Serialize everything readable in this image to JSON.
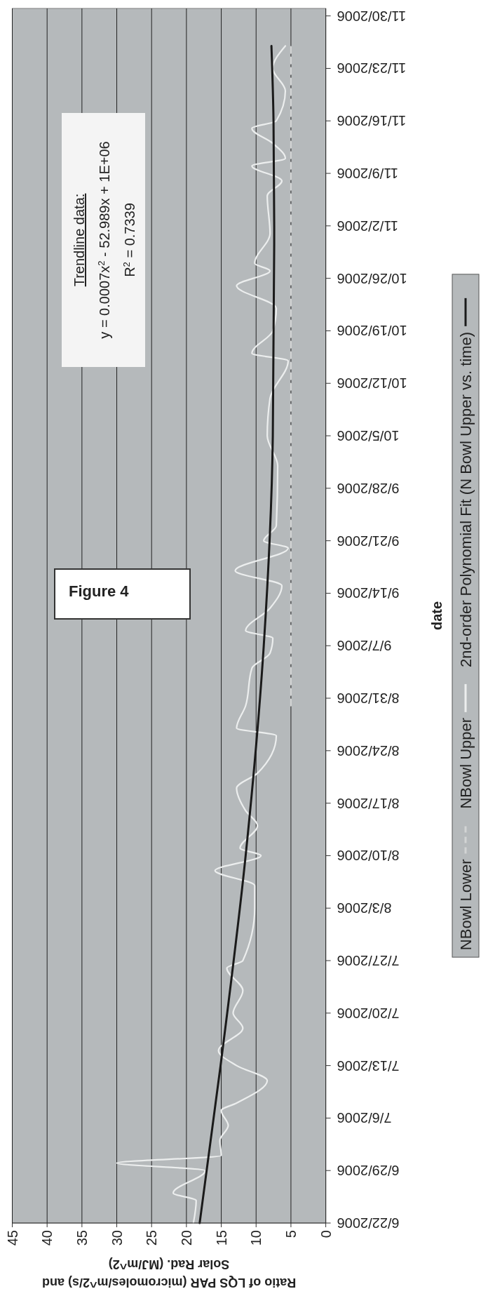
{
  "chart_data": {
    "type": "line",
    "orientation": "horizontal",
    "ylabel": "date",
    "xlabel": "Ratio of LQS PAR (micromoles/m^2/s) and\nSolar Rad. (MJ/m^2)",
    "annotations": [
      "Figure 4",
      "Trendline data:",
      "y = 0.0007x$^{2}$ - 52.989x + 1E+06",
      "R$^{2}$ = 0.7339"
    ],
    "ylim": [
      "2006-06-22",
      "2006-12-01"
    ],
    "yticks": [
      {
        "value": "2006-06-22",
        "label": "6/22/2006"
      },
      {
        "value": "2006-06-29",
        "label": "6/29/2006"
      },
      {
        "value": "2006-07-06",
        "label": "7/6/2006"
      },
      {
        "value": "2006-07-13",
        "label": "7/13/2006"
      },
      {
        "value": "2006-07-20",
        "label": "7/20/2006"
      },
      {
        "value": "2006-07-27",
        "label": "7/27/2006"
      },
      {
        "value": "2006-08-03",
        "label": "8/3/2006"
      },
      {
        "value": "2006-08-10",
        "label": "8/10/2006"
      },
      {
        "value": "2006-08-17",
        "label": "8/17/2006"
      },
      {
        "value": "2006-08-24",
        "label": "8/24/2006"
      },
      {
        "value": "2006-08-31",
        "label": "8/31/2006"
      },
      {
        "value": "2006-09-07",
        "label": "9/7/2006"
      },
      {
        "value": "2006-09-14",
        "label": "9/14/2006"
      },
      {
        "value": "2006-09-21",
        "label": "9/21/2006"
      },
      {
        "value": "2006-09-28",
        "label": "9/28/2006"
      },
      {
        "value": "2006-10-05",
        "label": "10/5/2006"
      },
      {
        "value": "2006-10-12",
        "label": "10/12/2006"
      },
      {
        "value": "2006-10-19",
        "label": "10/19/2006"
      },
      {
        "value": "2006-10-26",
        "label": "10/26/2006"
      },
      {
        "value": "2006-11-02",
        "label": "11/2/2006"
      },
      {
        "value": "2006-11-09",
        "label": "11/9/2006"
      },
      {
        "value": "2006-11-16",
        "label": "11/16/2006"
      },
      {
        "value": "2006-11-23",
        "label": "11/23/2006"
      },
      {
        "value": "2006-11-30",
        "label": "11/30/2006"
      }
    ],
    "xlim": [
      45,
      0
    ],
    "xticks": [
      45,
      40,
      35,
      30,
      25,
      20,
      15,
      10,
      5,
      0
    ],
    "grid": "x",
    "legend": "right",
    "series": [
      {
        "name": "NBowl Lower",
        "color": "#d2d4d4",
        "line_style": "dashed",
        "x": [
          "2006-08-30",
          "2006-11-26"
        ],
        "values": [
          5,
          5
        ]
      },
      {
        "name": "NBowl Upper",
        "color": "#eceeee",
        "x": [
          "2006-06-22",
          "2006-06-25",
          "2006-06-26",
          "2006-06-29",
          "2006-06-30",
          "2006-07-01",
          "2006-07-03",
          "2006-07-05",
          "2006-07-07",
          "2006-07-08",
          "2006-07-11",
          "2006-07-13",
          "2006-07-15",
          "2006-07-18",
          "2006-07-20",
          "2006-07-23",
          "2006-07-26",
          "2006-07-27",
          "2006-08-03",
          "2006-08-06",
          "2006-08-08",
          "2006-08-10",
          "2006-08-11",
          "2006-08-14",
          "2006-08-16",
          "2006-08-19",
          "2006-08-21",
          "2006-08-26",
          "2006-08-27",
          "2006-08-30",
          "2006-09-04",
          "2006-09-06",
          "2006-09-08",
          "2006-09-09",
          "2006-09-12",
          "2006-09-15",
          "2006-09-17",
          "2006-09-20",
          "2006-09-21",
          "2006-09-23",
          "2006-10-01",
          "2006-10-05",
          "2006-10-10",
          "2006-10-15",
          "2006-10-16",
          "2006-10-19",
          "2006-10-22",
          "2006-10-25",
          "2006-10-27",
          "2006-10-28",
          "2006-11-01",
          "2006-11-06",
          "2006-11-08",
          "2006-11-10",
          "2006-11-11",
          "2006-11-13",
          "2006-11-15",
          "2006-11-16",
          "2006-11-20",
          "2006-11-23",
          "2006-11-26"
        ],
        "values": [
          19,
          18.6,
          21.9,
          17.3,
          30,
          15,
          15.2,
          14,
          15,
          12.8,
          8.4,
          12.8,
          15.4,
          11.9,
          13.3,
          11.9,
          14.2,
          11.9,
          10.2,
          10.2,
          15.9,
          9.3,
          12.3,
          9.8,
          11.5,
          12.8,
          9.8,
          7.1,
          12.8,
          11.5,
          10.6,
          8,
          7.6,
          11.5,
          8,
          6.3,
          13,
          5.4,
          8.9,
          7.1,
          6.9,
          8.4,
          8,
          5.4,
          10.6,
          7.6,
          7.1,
          12.8,
          8,
          10.2,
          8,
          8.4,
          6.3,
          10.6,
          5.8,
          7.6,
          10.6,
          7.1,
          5.8,
          7.6,
          5.8
        ]
      },
      {
        "name": "2nd-order Polynomial Fit (N Bowl Upper vs. time)",
        "color": "#1a1a1a",
        "x": [
          "2006-06-22",
          "2006-07-13",
          "2006-08-10",
          "2006-09-07",
          "2006-10-05",
          "2006-11-02",
          "2006-11-16",
          "2006-11-26"
        ],
        "values": [
          18.1,
          15.1,
          11.5,
          8.9,
          7.6,
          7.4,
          7.5,
          7.8
        ]
      }
    ]
  }
}
